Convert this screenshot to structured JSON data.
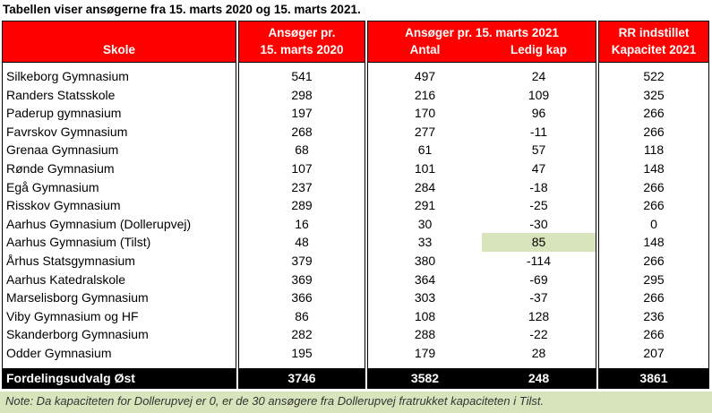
{
  "title": "Tabellen viser ansøgerne fra 15. marts 2020 og 15. marts 2021.",
  "headers": {
    "school": "Skole",
    "col2020_line1": "Ansøger pr.",
    "col2020_line2": "15. marts 2020",
    "col2021_line1": "Ansøger pr. 15. marts 2021",
    "col2021_antal": "Antal",
    "col2021_ledig": "Ledig kap",
    "rr_line1": "RR indstillet",
    "rr_line2": "Kapacitet 2021"
  },
  "rows": [
    {
      "school": "Silkeborg Gymnasium",
      "a2020": "541",
      "antal": "497",
      "ledig": "24",
      "kap": "522"
    },
    {
      "school": "Randers Statsskole",
      "a2020": "298",
      "antal": "216",
      "ledig": "109",
      "kap": "325"
    },
    {
      "school": "Paderup gymnasium",
      "a2020": "197",
      "antal": "170",
      "ledig": "96",
      "kap": "266"
    },
    {
      "school": "Favrskov Gymnasium",
      "a2020": "268",
      "antal": "277",
      "ledig": "-11",
      "kap": "266"
    },
    {
      "school": "Grenaa Gymnasium",
      "a2020": "68",
      "antal": "61",
      "ledig": "57",
      "kap": "118"
    },
    {
      "school": "Rønde Gymnasium",
      "a2020": "107",
      "antal": "101",
      "ledig": "47",
      "kap": "148"
    },
    {
      "school": "Egå Gymnasium",
      "a2020": "237",
      "antal": "284",
      "ledig": "-18",
      "kap": "266"
    },
    {
      "school": "Risskov Gymnasium",
      "a2020": "289",
      "antal": "291",
      "ledig": "-25",
      "kap": "266"
    },
    {
      "school": "Aarhus Gymnasium (Dollerupvej)",
      "a2020": "16",
      "antal": "30",
      "ledig": "-30",
      "kap": "0"
    },
    {
      "school": "Aarhus Gymnasium (Tilst)",
      "a2020": "48",
      "antal": "33",
      "ledig": "85",
      "kap": "148"
    },
    {
      "school": "Århus Statsgymnasium",
      "a2020": "379",
      "antal": "380",
      "ledig": "-114",
      "kap": "266"
    },
    {
      "school": "Aarhus Katedralskole",
      "a2020": "369",
      "antal": "364",
      "ledig": "-69",
      "kap": "295"
    },
    {
      "school": "Marselisborg Gymnasium",
      "a2020": "366",
      "antal": "303",
      "ledig": "-37",
      "kap": "266"
    },
    {
      "school": "Viby Gymnasium og HF",
      "a2020": "86",
      "antal": "108",
      "ledig": "128",
      "kap": "236"
    },
    {
      "school": "Skanderborg Gymnasium",
      "a2020": "282",
      "antal": "288",
      "ledig": "-22",
      "kap": "266"
    },
    {
      "school": "Odder Gymnasium",
      "a2020": "195",
      "antal": "179",
      "ledig": "28",
      "kap": "207"
    }
  ],
  "total": {
    "school": "Fordelingsudvalg Øst",
    "a2020": "3746",
    "antal": "3582",
    "ledig": "248",
    "kap": "3861"
  },
  "note": "Note: Da kapaciteten for Dollerupvej er 0, er de 30 ansøgere fra Dollerupvej fratrukket kapaciteten i Tilst.",
  "colors": {
    "header_bg": "#ff0000",
    "header_text": "#ffffff",
    "highlight": "#d8e4bc",
    "total_bg": "#000000"
  }
}
